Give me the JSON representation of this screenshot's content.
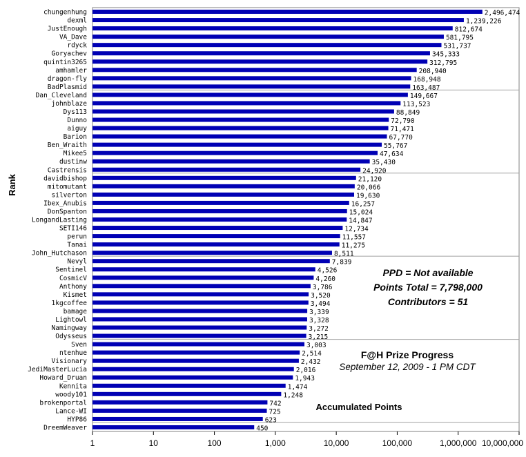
{
  "chart_data": {
    "type": "bar",
    "orientation": "horizontal",
    "scale": "log",
    "ylabel": "Rank",
    "xlabel": "Accumulated Points",
    "xlim": [
      1,
      10000000
    ],
    "x_ticks": [
      "1",
      "10",
      "100",
      "1,000",
      "10,000",
      "100,000",
      "1,000,000",
      "10,000,000"
    ],
    "bar_color": "#0000b4",
    "grid": "horizontal lines every 10 bars",
    "categories": [
      "chungenhung",
      "dexml",
      "JustEnough",
      "VA_Dave",
      "rdyck",
      "Goryachev",
      "quintin3265",
      "amhamler",
      "dragon-fly",
      "BadPlasmid",
      "Dan_Cleveland",
      "johnblaze",
      "Dys113",
      "Dunno",
      "aiguy",
      "Barion",
      "Ben_Wraith",
      "Mikee5",
      "dustinw",
      "Castrensis",
      "davidbishop",
      "mitomutant",
      "silverton",
      "Ibex_Anubis",
      "DonSpanton",
      "LongandLasting",
      "SETI146",
      "perun",
      "Tanai",
      "John_Hutchason",
      "Nevyl",
      "Sentinel",
      "CosmicV",
      "Anthony",
      "Kismet",
      "1kgcoffee",
      "bamage",
      "Lightowl",
      "Namingway",
      "Odysseus",
      "Sven",
      "ntenhue",
      "Visionary",
      "JediMasterLucia",
      "Howard_Druan",
      "Kennita",
      "woody101",
      "brokenportal",
      "Lance-WI",
      "HYP86",
      "DreemWeaver"
    ],
    "values": [
      2496474,
      1239226,
      812674,
      581795,
      531737,
      345333,
      312795,
      208940,
      168948,
      163487,
      149667,
      113523,
      88849,
      72790,
      71471,
      67770,
      55767,
      47634,
      35430,
      24920,
      21120,
      20066,
      19630,
      16257,
      15024,
      14847,
      12734,
      11557,
      11275,
      8511,
      7839,
      4526,
      4260,
      3786,
      3520,
      3494,
      3339,
      3328,
      3272,
      3215,
      3003,
      2514,
      2432,
      2016,
      1943,
      1474,
      1248,
      742,
      725,
      623,
      450
    ],
    "value_labels": [
      "2,496,474",
      "1,239,226",
      "812,674",
      "581,795",
      "531,737",
      "345,333",
      "312,795",
      "208,940",
      "168,948",
      "163,487",
      "149,667",
      "113,523",
      "88,849",
      "72,790",
      "71,471",
      "67,770",
      "55,767",
      "47,634",
      "35,430",
      "24,920",
      "21,120",
      "20,066",
      "19,630",
      "16,257",
      "15,024",
      "14,847",
      "12,734",
      "11,557",
      "11,275",
      "8,511",
      "7,839",
      "4,526",
      "4,260",
      "3,786",
      "3,520",
      "3,494",
      "3,339",
      "3,328",
      "3,272",
      "3,215",
      "3,003",
      "2,514",
      "2,432",
      "2,016",
      "1,943",
      "1,474",
      "1,248",
      "742",
      "725",
      "623",
      "450"
    ]
  },
  "stats": {
    "ppd": "PPD = Not available",
    "points_total": "Points Total = 7,798,000",
    "contributors": "Contributors = 51"
  },
  "title": {
    "line1": "F@H Prize Progress",
    "line2": "September  12, 2009 - 1 PM CDT"
  }
}
